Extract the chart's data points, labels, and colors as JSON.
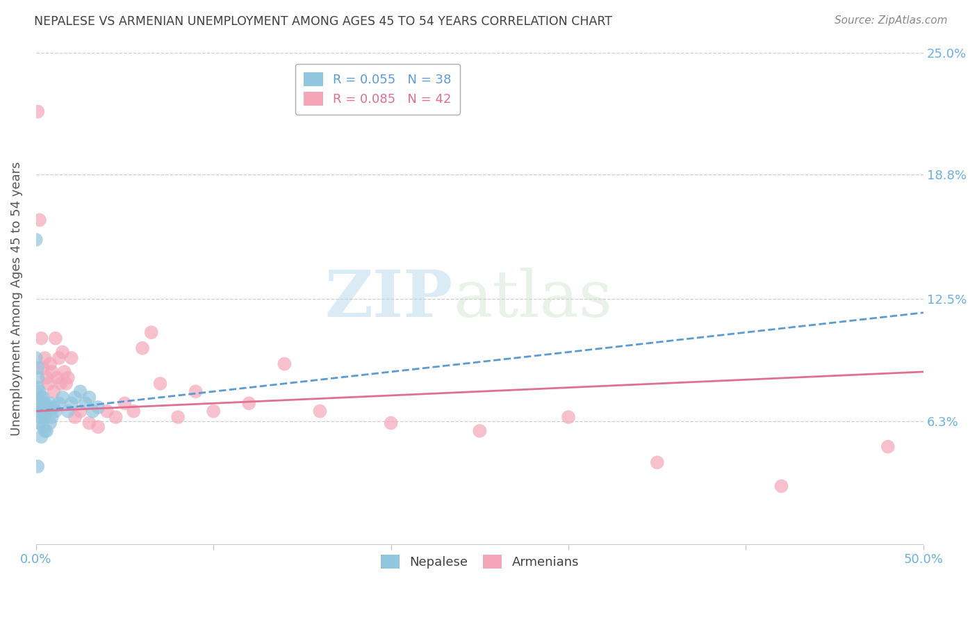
{
  "title": "NEPALESE VS ARMENIAN UNEMPLOYMENT AMONG AGES 45 TO 54 YEARS CORRELATION CHART",
  "source": "Source: ZipAtlas.com",
  "ylabel": "Unemployment Among Ages 45 to 54 years",
  "xlim": [
    0.0,
    0.5
  ],
  "ylim": [
    0.0,
    0.25
  ],
  "ytick_labels_right": [
    "25.0%",
    "18.8%",
    "12.5%",
    "6.3%",
    ""
  ],
  "ytick_vals_right": [
    0.25,
    0.188,
    0.125,
    0.063,
    0.0
  ],
  "nepalese_R": 0.055,
  "nepalese_N": 38,
  "armenian_R": 0.085,
  "armenian_N": 42,
  "nepalese_color": "#92c5de",
  "armenian_color": "#f4a6b8",
  "nepalese_line_color": "#5b9bd5",
  "armenian_line_color": "#e07090",
  "background_color": "#ffffff",
  "grid_color": "#cccccc",
  "title_color": "#404040",
  "right_label_color": "#6ab0e0",
  "nepalese_x": [
    0.0,
    0.0,
    0.001,
    0.001,
    0.001,
    0.001,
    0.002,
    0.002,
    0.002,
    0.002,
    0.003,
    0.003,
    0.003,
    0.003,
    0.004,
    0.004,
    0.004,
    0.005,
    0.005,
    0.005,
    0.006,
    0.006,
    0.007,
    0.008,
    0.008,
    0.009,
    0.01,
    0.011,
    0.013,
    0.015,
    0.018,
    0.02,
    0.022,
    0.025,
    0.028,
    0.03,
    0.032,
    0.035
  ],
  "nepalese_y": [
    0.155,
    0.095,
    0.09,
    0.085,
    0.08,
    0.04,
    0.078,
    0.072,
    0.068,
    0.062,
    0.075,
    0.07,
    0.065,
    0.055,
    0.075,
    0.068,
    0.06,
    0.072,
    0.065,
    0.058,
    0.068,
    0.058,
    0.07,
    0.072,
    0.062,
    0.065,
    0.07,
    0.068,
    0.072,
    0.075,
    0.068,
    0.072,
    0.075,
    0.078,
    0.072,
    0.075,
    0.068,
    0.07
  ],
  "armenian_x": [
    0.001,
    0.002,
    0.003,
    0.004,
    0.005,
    0.006,
    0.007,
    0.008,
    0.009,
    0.01,
    0.011,
    0.012,
    0.013,
    0.014,
    0.015,
    0.016,
    0.017,
    0.018,
    0.02,
    0.022,
    0.025,
    0.03,
    0.035,
    0.04,
    0.045,
    0.05,
    0.055,
    0.06,
    0.065,
    0.07,
    0.08,
    0.09,
    0.1,
    0.12,
    0.14,
    0.16,
    0.2,
    0.25,
    0.3,
    0.35,
    0.42,
    0.48
  ],
  "armenian_y": [
    0.22,
    0.165,
    0.105,
    0.09,
    0.095,
    0.085,
    0.082,
    0.092,
    0.088,
    0.078,
    0.105,
    0.085,
    0.095,
    0.082,
    0.098,
    0.088,
    0.082,
    0.085,
    0.095,
    0.065,
    0.068,
    0.062,
    0.06,
    0.068,
    0.065,
    0.072,
    0.068,
    0.1,
    0.108,
    0.082,
    0.065,
    0.078,
    0.068,
    0.072,
    0.092,
    0.068,
    0.062,
    0.058,
    0.065,
    0.042,
    0.03,
    0.05
  ],
  "watermark_zip": "ZIP",
  "watermark_atlas": "atlas",
  "legend_box_color": "#ffffff",
  "legend_border_color": "#aaaaaa",
  "nepalese_line_intercept": 0.068,
  "nepalese_line_slope": 0.1,
  "armenian_line_intercept": 0.068,
  "armenian_line_slope": 0.04
}
